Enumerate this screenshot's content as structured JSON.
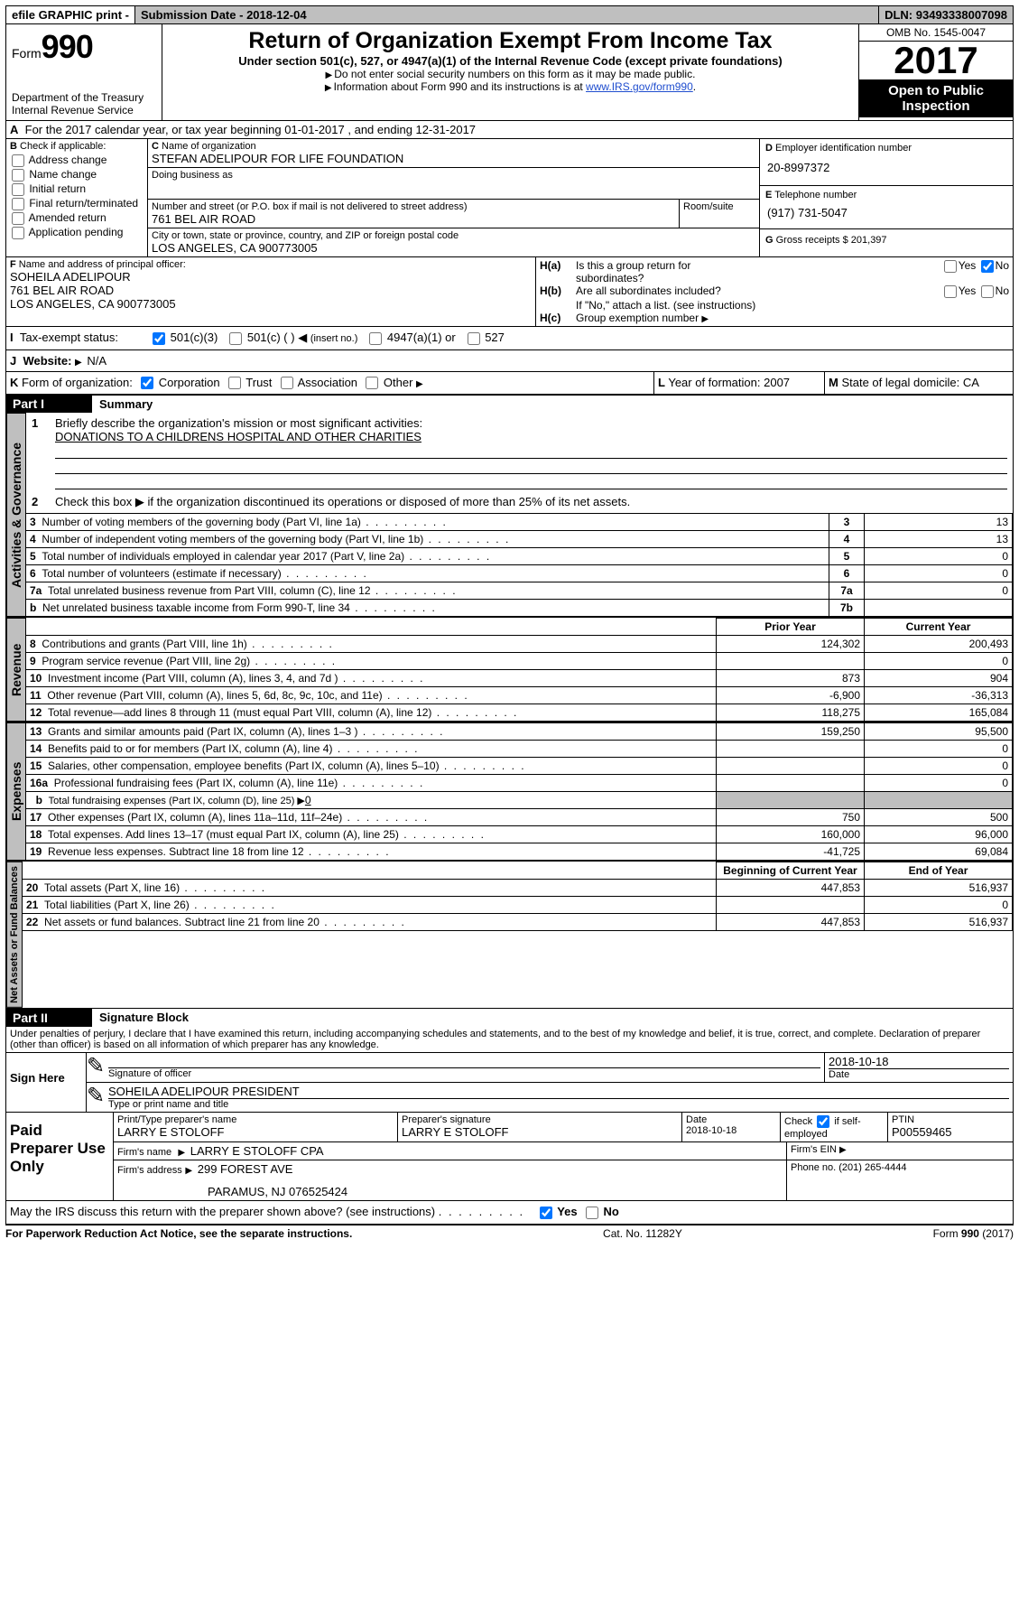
{
  "topbar": {
    "efile": "efile GRAPHIC print -",
    "submission_label": "Submission Date -",
    "submission_date": "2018-12-04",
    "dln_label": "DLN:",
    "dln": "93493338007098"
  },
  "header": {
    "form_prefix": "Form",
    "form_number": "990",
    "dept": "Department of the Treasury",
    "irs": "Internal Revenue Service",
    "title": "Return of Organization Exempt From Income Tax",
    "subtitle": "Under section 501(c), 527, or 4947(a)(1) of the Internal Revenue Code (except private foundations)",
    "note1": "Do not enter social security numbers on this form as it may be made public.",
    "note2_prefix": "Information about Form 990 and its instructions is at ",
    "note2_link": "www.IRS.gov/form990",
    "omb": "OMB No. 1545-0047",
    "year": "2017",
    "open1": "Open to Public",
    "open2": "Inspection"
  },
  "sectionA": {
    "line": "For the 2017 calendar year, or tax year beginning 01-01-2017   , and ending 12-31-2017",
    "b_label": "Check if applicable:",
    "b_items": [
      "Address change",
      "Name change",
      "Initial return",
      "Final return/terminated",
      "Amended return",
      "Application pending"
    ],
    "c_label": "Name of organization",
    "c_name": "STEFAN ADELIPOUR FOR LIFE FOUNDATION",
    "dba_label": "Doing business as",
    "street_label": "Number and street (or P.O. box if mail is not delivered to street address)",
    "room_label": "Room/suite",
    "street": "761 BEL AIR ROAD",
    "city_label": "City or town, state or province, country, and ZIP or foreign postal code",
    "city": "LOS ANGELES, CA  900773005",
    "d_label": "Employer identification number",
    "d_ein": "20-8997372",
    "e_label": "Telephone number",
    "e_phone": "(917) 731-5047",
    "g_label": "Gross receipts $",
    "g_amount": "201,397",
    "f_label": "Name and address of principal officer:",
    "f_name": "SOHEILA ADELIPOUR",
    "f_addr1": "761 BEL AIR ROAD",
    "f_addr2": "LOS ANGELES, CA  900773005",
    "ha_label": "Is this a group return for",
    "ha_label2": "subordinates?",
    "hb_label": "Are all subordinates included?",
    "h_note": "If \"No,\" attach a list. (see instructions)",
    "hc_label": "Group exemption number",
    "yes": "Yes",
    "no": "No",
    "i_label": "Tax-exempt status:",
    "i_501c3": "501(c)(3)",
    "i_501c": "501(c) (  )",
    "i_insert": "(insert no.)",
    "i_4947": "4947(a)(1) or",
    "i_527": "527",
    "j_label": "Website:",
    "j_val": "N/A",
    "k_label": "Form of organization:",
    "k_items": [
      "Corporation",
      "Trust",
      "Association",
      "Other"
    ],
    "l_label": "Year of formation:",
    "l_val": "2007",
    "m_label": "State of legal domicile:",
    "m_val": "CA",
    "ha_marker": "H(a)",
    "hb_marker": "H(b)",
    "hc_marker": "H(c)"
  },
  "part1": {
    "title": "Part I",
    "heading": "Summary",
    "side_activities": "Activities & Governance",
    "side_revenue": "Revenue",
    "side_expenses": "Expenses",
    "side_netassets": "Net Assets or Fund Balances",
    "l1_label": "Briefly describe the organization's mission or most significant activities:",
    "l1_text": "DONATIONS TO A CHILDRENS HOSPITAL AND OTHER CHARITIES",
    "l2": "Check this box ▶       if the organization discontinued its operations or disposed of more than 25% of its net assets.",
    "rows_gov": [
      {
        "n": "3",
        "label": "Number of voting members of the governing body (Part VI, line 1a)",
        "box": "3",
        "val": "13"
      },
      {
        "n": "4",
        "label": "Number of independent voting members of the governing body (Part VI, line 1b)",
        "box": "4",
        "val": "13"
      },
      {
        "n": "5",
        "label": "Total number of individuals employed in calendar year 2017 (Part V, line 2a)",
        "box": "5",
        "val": "0"
      },
      {
        "n": "6",
        "label": "Total number of volunteers (estimate if necessary)",
        "box": "6",
        "val": "0"
      },
      {
        "n": "7a",
        "label": "Total unrelated business revenue from Part VIII, column (C), line 12",
        "box": "7a",
        "val": "0"
      },
      {
        "n": "b",
        "label": "Net unrelated business taxable income from Form 990-T, line 34",
        "box": "7b",
        "val": ""
      }
    ],
    "col_prior": "Prior Year",
    "col_current": "Current Year",
    "rows_rev": [
      {
        "n": "8",
        "label": "Contributions and grants (Part VIII, line 1h)",
        "p": "124,302",
        "c": "200,493"
      },
      {
        "n": "9",
        "label": "Program service revenue (Part VIII, line 2g)",
        "p": "",
        "c": "0"
      },
      {
        "n": "10",
        "label": "Investment income (Part VIII, column (A), lines 3, 4, and 7d )",
        "p": "873",
        "c": "904"
      },
      {
        "n": "11",
        "label": "Other revenue (Part VIII, column (A), lines 5, 6d, 8c, 9c, 10c, and 11e)",
        "p": "-6,900",
        "c": "-36,313"
      },
      {
        "n": "12",
        "label": "Total revenue—add lines 8 through 11 (must equal Part VIII, column (A), line 12)",
        "p": "118,275",
        "c": "165,084"
      }
    ],
    "rows_exp": [
      {
        "n": "13",
        "label": "Grants and similar amounts paid (Part IX, column (A), lines 1–3 )",
        "p": "159,250",
        "c": "95,500"
      },
      {
        "n": "14",
        "label": "Benefits paid to or for members (Part IX, column (A), line 4)",
        "p": "",
        "c": "0"
      },
      {
        "n": "15",
        "label": "Salaries, other compensation, employee benefits (Part IX, column (A), lines 5–10)",
        "p": "",
        "c": "0"
      },
      {
        "n": "16a",
        "label": "Professional fundraising fees (Part IX, column (A), line 11e)",
        "p": "",
        "c": "0"
      }
    ],
    "l16b": "Total fundraising expenses (Part IX, column (D), line 25) ▶",
    "l16b_val": "0",
    "rows_exp2": [
      {
        "n": "17",
        "label": "Other expenses (Part IX, column (A), lines 11a–11d, 11f–24e)",
        "p": "750",
        "c": "500"
      },
      {
        "n": "18",
        "label": "Total expenses. Add lines 13–17 (must equal Part IX, column (A), line 25)",
        "p": "160,000",
        "c": "96,000"
      },
      {
        "n": "19",
        "label": "Revenue less expenses. Subtract line 18 from line 12",
        "p": "-41,725",
        "c": "69,084"
      }
    ],
    "col_begin": "Beginning of Current Year",
    "col_end": "End of Year",
    "rows_net": [
      {
        "n": "20",
        "label": "Total assets (Part X, line 16)",
        "p": "447,853",
        "c": "516,937"
      },
      {
        "n": "21",
        "label": "Total liabilities (Part X, line 26)",
        "p": "",
        "c": "0"
      },
      {
        "n": "22",
        "label": "Net assets or fund balances. Subtract line 21 from line 20",
        "p": "447,853",
        "c": "516,937"
      }
    ]
  },
  "part2": {
    "title": "Part II",
    "heading": "Signature Block",
    "perjury": "Under penalties of perjury, I declare that I have examined this return, including accompanying schedules and statements, and to the best of my knowledge and belief, it is true, correct, and complete. Declaration of preparer (other than officer) is based on all information of which preparer has any knowledge.",
    "sign_here": "Sign Here",
    "sig_officer": "Signature of officer",
    "sig_date": "2018-10-18",
    "date_label": "Date",
    "name_title": "SOHEILA ADELIPOUR PRESIDENT",
    "type_label": "Type or print name and title",
    "paid": "Paid Preparer Use Only",
    "prep_name_label": "Print/Type preparer's name",
    "prep_name": "LARRY E STOLOFF",
    "prep_sig_label": "Preparer's signature",
    "prep_sig": "LARRY E STOLOFF",
    "prep_date_label": "Date",
    "prep_date": "2018-10-18",
    "check_label": "Check",
    "self_emp": "if self-employed",
    "ptin_label": "PTIN",
    "ptin": "P00559465",
    "firm_name_label": "Firm's name",
    "firm_name": "LARRY E STOLOFF CPA",
    "firm_ein_label": "Firm's EIN",
    "firm_addr_label": "Firm's address",
    "firm_addr1": "299 FOREST AVE",
    "firm_addr2": "PARAMUS, NJ  076525424",
    "phone_label": "Phone no.",
    "phone": "(201) 265-4444",
    "discuss": "May the IRS discuss this return with the preparer shown above? (see instructions)"
  },
  "footer": {
    "left": "For Paperwork Reduction Act Notice, see the separate instructions.",
    "mid": "Cat. No. 11282Y",
    "right": "Form 990 (2017)"
  }
}
